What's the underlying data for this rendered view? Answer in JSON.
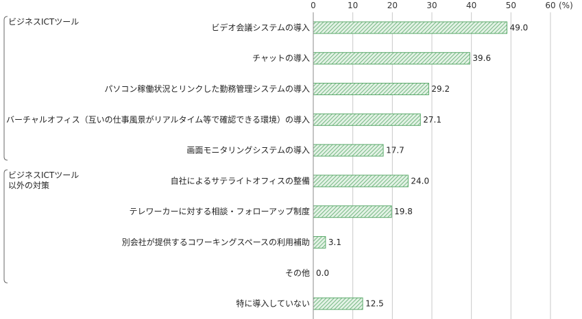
{
  "chart_data": {
    "type": "bar",
    "orientation": "horizontal",
    "unit_label": "(%)",
    "xlim": [
      0,
      60
    ],
    "ticks": [
      0,
      10,
      20,
      30,
      40,
      50,
      60
    ],
    "grid": true,
    "bar_color": "#5aa96a",
    "bar_fill": "#d9eedc",
    "groups": [
      {
        "label_lines": [
          "ビジネスICTツール"
        ],
        "start": 0,
        "end": 4
      },
      {
        "label_lines": [
          "ビジネスICTツール",
          "以外の対策"
        ],
        "start": 5,
        "end": 8
      }
    ],
    "categories": [
      "ビデオ会議システムの導入",
      "チャットの導入",
      "パソコン稼働状況とリンクした勤務管理システムの導入",
      "バーチャルオフィス（互いの仕事風景がリアルタイム等で確認できる環境）の導入",
      "画面モニタリングシステムの導入",
      "自社によるサテライトオフィスの整備",
      "テレワーカーに対する相談・フォローアップ制度",
      "別会社が提供するコワーキングスペースの利用補助",
      "その他",
      "特に導入していない"
    ],
    "values": [
      49.0,
      39.6,
      29.2,
      27.1,
      17.7,
      24.0,
      19.8,
      3.1,
      0.0,
      12.5
    ],
    "value_labels": [
      "49.0",
      "39.6",
      "29.2",
      "27.1",
      "17.7",
      "24.0",
      "19.8",
      "3.1",
      "0.0",
      "12.5"
    ]
  }
}
